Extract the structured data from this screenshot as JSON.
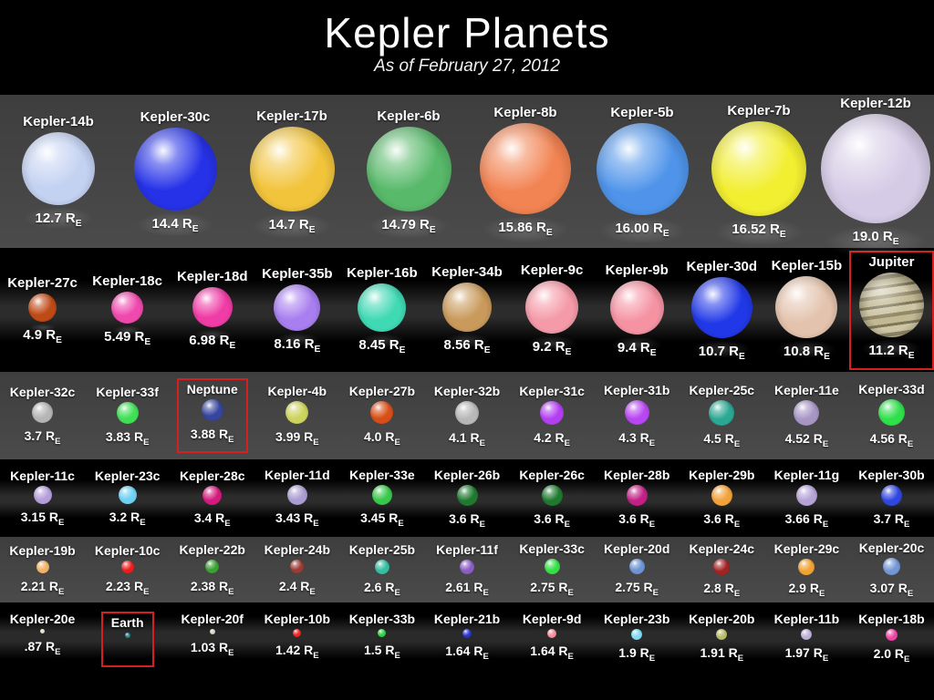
{
  "header": {
    "title": "Kepler Planets",
    "subtitle": "As of February 27, 2012"
  },
  "unit": {
    "symbol": "R",
    "subscript": "E"
  },
  "colors": {
    "background": "#000000",
    "row_band_gray": "#464646",
    "highlight_box": "#d42020",
    "text": "#ffffff"
  },
  "chart_data": {
    "type": "scatter",
    "title": "Kepler Planets",
    "subtitle": "As of February 27, 2012",
    "value_unit": "Earth radii (R_E)",
    "scale_px_per_earth_radius": 6.3,
    "note": "Planets drawn to relative size, grouped in six rows sorted by radius; Jupiter, Neptune and Earth shown boxed in red for comparison",
    "rows": [
      {
        "planets": [
          {
            "name": "Kepler-14b",
            "radius": 12.7,
            "value_label": "12.7",
            "color": "#c4d2f2",
            "highlighted": false
          },
          {
            "name": "Kepler-30c",
            "radius": 14.4,
            "value_label": "14.4",
            "color": "#2632e8",
            "highlighted": false
          },
          {
            "name": "Kepler-17b",
            "radius": 14.7,
            "value_label": "14.7",
            "color": "#f2c43c",
            "highlighted": false
          },
          {
            "name": "Kepler-6b",
            "radius": 14.79,
            "value_label": "14.79",
            "color": "#58b96a",
            "highlighted": false
          },
          {
            "name": "Kepler-8b",
            "radius": 15.86,
            "value_label": "15.86",
            "color": "#f28352",
            "highlighted": false
          },
          {
            "name": "Kepler-5b",
            "radius": 16.0,
            "value_label": "16.00",
            "color": "#4f94ea",
            "highlighted": false
          },
          {
            "name": "Kepler-7b",
            "radius": 16.52,
            "value_label": "16.52",
            "color": "#f2ee30",
            "highlighted": false
          },
          {
            "name": "Kepler-12b",
            "radius": 19.0,
            "value_label": "19.0",
            "color": "#d5cbe6",
            "highlighted": false
          }
        ]
      },
      {
        "planets": [
          {
            "name": "Kepler-27c",
            "radius": 4.9,
            "value_label": "4.9",
            "color": "#bf4a16",
            "highlighted": false
          },
          {
            "name": "Kepler-18c",
            "radius": 5.49,
            "value_label": "5.49",
            "color": "#f049ae",
            "highlighted": false
          },
          {
            "name": "Kepler-18d",
            "radius": 6.98,
            "value_label": "6.98",
            "color": "#f03ca6",
            "highlighted": false
          },
          {
            "name": "Kepler-35b",
            "radius": 8.16,
            "value_label": "8.16",
            "color": "#a87ef0",
            "highlighted": false
          },
          {
            "name": "Kepler-16b",
            "radius": 8.45,
            "value_label": "8.45",
            "color": "#3fd9b4",
            "highlighted": false
          },
          {
            "name": "Kepler-34b",
            "radius": 8.56,
            "value_label": "8.56",
            "color": "#c99a5b",
            "highlighted": false
          },
          {
            "name": "Kepler-9c",
            "radius": 9.2,
            "value_label": "9.2",
            "color": "#f59aa8",
            "highlighted": false
          },
          {
            "name": "Kepler-9b",
            "radius": 9.4,
            "value_label": "9.4",
            "color": "#f593a3",
            "highlighted": false
          },
          {
            "name": "Kepler-30d",
            "radius": 10.7,
            "value_label": "10.7",
            "color": "#2138e8",
            "highlighted": false
          },
          {
            "name": "Kepler-15b",
            "radius": 10.8,
            "value_label": "10.8",
            "color": "#e3c3ad",
            "highlighted": false
          },
          {
            "name": "Jupiter",
            "radius": 11.2,
            "value_label": "11.2",
            "color": "#b3aa8a",
            "highlighted": true,
            "style": "jupiter"
          }
        ]
      },
      {
        "planets": [
          {
            "name": "Kepler-32c",
            "radius": 3.7,
            "value_label": "3.7",
            "color": "#b5b5b5",
            "highlighted": false
          },
          {
            "name": "Kepler-33f",
            "radius": 3.83,
            "value_label": "3.83",
            "color": "#3fe055",
            "highlighted": false
          },
          {
            "name": "Neptune",
            "radius": 3.88,
            "value_label": "3.88",
            "color": "#36459e",
            "highlighted": true
          },
          {
            "name": "Kepler-4b",
            "radius": 3.99,
            "value_label": "3.99",
            "color": "#ccd45e",
            "highlighted": false
          },
          {
            "name": "Kepler-27b",
            "radius": 4.0,
            "value_label": "4.0",
            "color": "#d94e16",
            "highlighted": false
          },
          {
            "name": "Kepler-32b",
            "radius": 4.1,
            "value_label": "4.1",
            "color": "#b8b8b8",
            "highlighted": false
          },
          {
            "name": "Kepler-31c",
            "radius": 4.2,
            "value_label": "4.2",
            "color": "#b33ff2",
            "highlighted": false
          },
          {
            "name": "Kepler-31b",
            "radius": 4.3,
            "value_label": "4.3",
            "color": "#b846f2",
            "highlighted": false
          },
          {
            "name": "Kepler-25c",
            "radius": 4.5,
            "value_label": "4.5",
            "color": "#2aa893",
            "highlighted": false
          },
          {
            "name": "Kepler-11e",
            "radius": 4.52,
            "value_label": "4.52",
            "color": "#a795c4",
            "highlighted": false
          },
          {
            "name": "Kepler-33d",
            "radius": 4.56,
            "value_label": "4.56",
            "color": "#2ee04a",
            "highlighted": false
          }
        ]
      },
      {
        "planets": [
          {
            "name": "Kepler-11c",
            "radius": 3.15,
            "value_label": "3.15",
            "color": "#b49fdb",
            "highlighted": false
          },
          {
            "name": "Kepler-23c",
            "radius": 3.2,
            "value_label": "3.2",
            "color": "#6fd1f2",
            "highlighted": false
          },
          {
            "name": "Kepler-28c",
            "radius": 3.4,
            "value_label": "3.4",
            "color": "#d41a7d",
            "highlighted": false
          },
          {
            "name": "Kepler-11d",
            "radius": 3.43,
            "value_label": "3.43",
            "color": "#ab9dd1",
            "highlighted": false
          },
          {
            "name": "Kepler-33e",
            "radius": 3.45,
            "value_label": "3.45",
            "color": "#38c94a",
            "highlighted": false
          },
          {
            "name": "Kepler-26b",
            "radius": 3.6,
            "value_label": "3.6",
            "color": "#1f7a30",
            "highlighted": false
          },
          {
            "name": "Kepler-26c",
            "radius": 3.6,
            "value_label": "3.6",
            "color": "#1f7a30",
            "highlighted": false
          },
          {
            "name": "Kepler-28b",
            "radius": 3.6,
            "value_label": "3.6",
            "color": "#c22085",
            "highlighted": false
          },
          {
            "name": "Kepler-29b",
            "radius": 3.6,
            "value_label": "3.6",
            "color": "#f2a238",
            "highlighted": false
          },
          {
            "name": "Kepler-11g",
            "radius": 3.66,
            "value_label": "3.66",
            "color": "#b5a3d6",
            "highlighted": false
          },
          {
            "name": "Kepler-30b",
            "radius": 3.7,
            "value_label": "3.7",
            "color": "#2f46e0",
            "highlighted": false
          }
        ]
      },
      {
        "planets": [
          {
            "name": "Kepler-19b",
            "radius": 2.21,
            "value_label": "2.21",
            "color": "#f0b266",
            "highlighted": false
          },
          {
            "name": "Kepler-10c",
            "radius": 2.23,
            "value_label": "2.23",
            "color": "#f01c1c",
            "highlighted": false
          },
          {
            "name": "Kepler-22b",
            "radius": 2.38,
            "value_label": "2.38",
            "color": "#3aa231",
            "highlighted": false
          },
          {
            "name": "Kepler-24b",
            "radius": 2.4,
            "value_label": "2.4",
            "color": "#9c3a34",
            "highlighted": false
          },
          {
            "name": "Kepler-25b",
            "radius": 2.6,
            "value_label": "2.6",
            "color": "#33bda1",
            "highlighted": false
          },
          {
            "name": "Kepler-11f",
            "radius": 2.61,
            "value_label": "2.61",
            "color": "#8a5cc4",
            "highlighted": false
          },
          {
            "name": "Kepler-33c",
            "radius": 2.75,
            "value_label": "2.75",
            "color": "#33e044",
            "highlighted": false
          },
          {
            "name": "Kepler-20d",
            "radius": 2.75,
            "value_label": "2.75",
            "color": "#6e93d4",
            "highlighted": false
          },
          {
            "name": "Kepler-24c",
            "radius": 2.8,
            "value_label": "2.8",
            "color": "#a32222",
            "highlighted": false
          },
          {
            "name": "Kepler-29c",
            "radius": 2.9,
            "value_label": "2.9",
            "color": "#f0a232",
            "highlighted": false
          },
          {
            "name": "Kepler-20c",
            "radius": 3.07,
            "value_label": "3.07",
            "color": "#7396d6",
            "highlighted": false
          }
        ]
      },
      {
        "planets": [
          {
            "name": "Kepler-20e",
            "radius": 0.87,
            "value_label": ".87",
            "color": "#dedec0",
            "highlighted": false
          },
          {
            "name": "Earth",
            "radius": 1.0,
            "value_label": null,
            "color": "#2e8fbe",
            "highlighted": true,
            "style": "earth"
          },
          {
            "name": "Kepler-20f",
            "radius": 1.03,
            "value_label": "1.03",
            "color": "#ccd6c2",
            "highlighted": false
          },
          {
            "name": "Kepler-10b",
            "radius": 1.42,
            "value_label": "1.42",
            "color": "#f02222",
            "highlighted": false
          },
          {
            "name": "Kepler-33b",
            "radius": 1.5,
            "value_label": "1.5",
            "color": "#30d244",
            "highlighted": false
          },
          {
            "name": "Kepler-21b",
            "radius": 1.64,
            "value_label": "1.64",
            "color": "#2634cc",
            "highlighted": false
          },
          {
            "name": "Kepler-9d",
            "radius": 1.64,
            "value_label": "1.64",
            "color": "#f58e9c",
            "highlighted": false
          },
          {
            "name": "Kepler-23b",
            "radius": 1.9,
            "value_label": "1.9",
            "color": "#7fd9f2",
            "highlighted": false
          },
          {
            "name": "Kepler-20b",
            "radius": 1.91,
            "value_label": "1.91",
            "color": "#b7bc6a",
            "highlighted": false
          },
          {
            "name": "Kepler-11b",
            "radius": 1.97,
            "value_label": "1.97",
            "color": "#beafd8",
            "highlighted": false
          },
          {
            "name": "Kepler-18b",
            "radius": 2.0,
            "value_label": "2.0",
            "color": "#f043a4",
            "highlighted": false
          }
        ]
      }
    ]
  }
}
